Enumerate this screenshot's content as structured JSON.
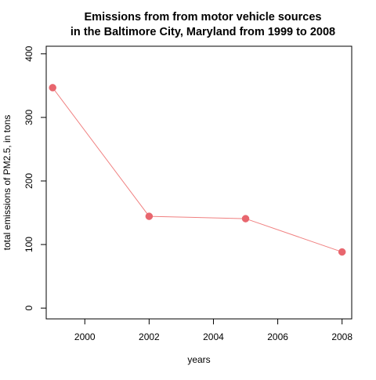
{
  "chart_data": {
    "type": "line",
    "title_lines": [
      "Emissions from from motor vehicle sources",
      "in the Baltimore City, Maryland from 1999 to 2008"
    ],
    "xlabel": "years",
    "ylabel": "total emissions of PM2.5, in tons",
    "x": [
      1999,
      2002,
      2005,
      2008
    ],
    "series": [
      {
        "values": [
          346.8,
          144.4,
          140.7,
          88.3
        ]
      }
    ],
    "xlim": [
      1998.8,
      2008.3
    ],
    "ylim": [
      -17,
      412
    ],
    "xticks": [
      2000,
      2002,
      2004,
      2006,
      2008
    ],
    "yticks": [
      0,
      100,
      200,
      300,
      400
    ],
    "xtick_labels": [
      "2000",
      "2002",
      "2004",
      "2006",
      "2008"
    ],
    "ytick_labels": [
      "0",
      "100",
      "200",
      "300",
      "400"
    ],
    "grid": false,
    "legend": "none",
    "point_color": "#E8666E",
    "line_color": "#F08080"
  }
}
